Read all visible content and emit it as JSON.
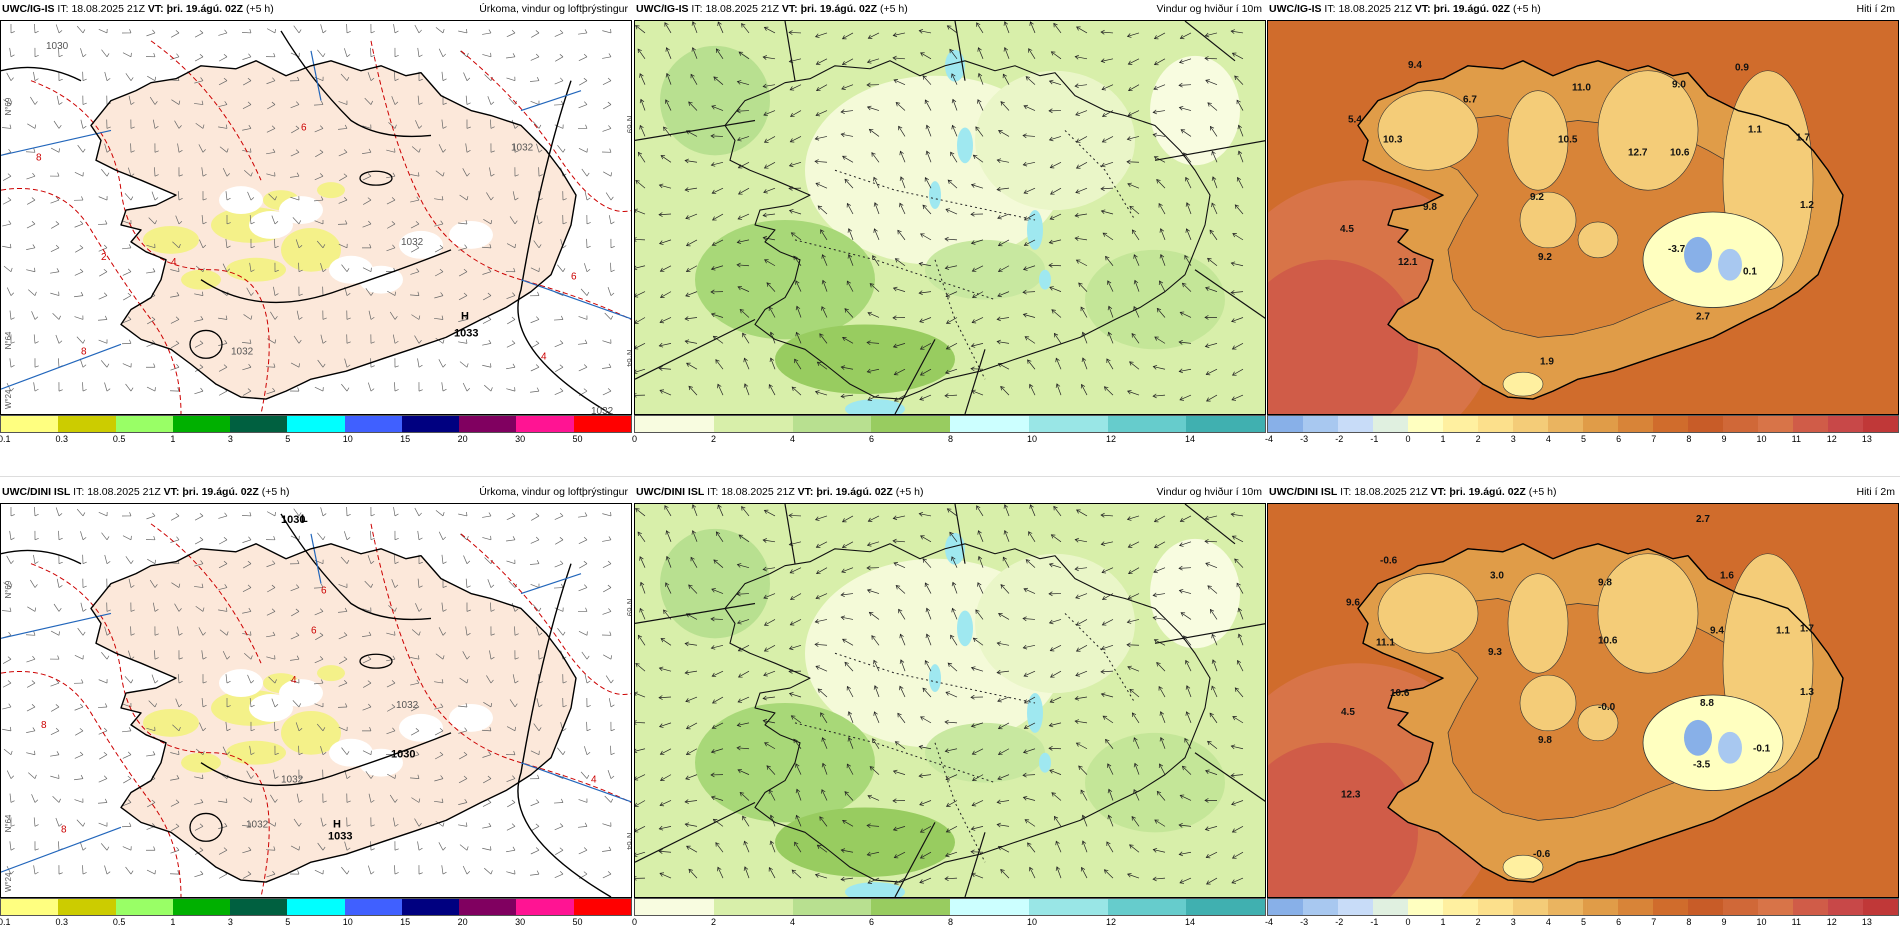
{
  "rows": [
    {
      "panels": [
        {
          "model": "UWC/IG-IS",
          "it_label": "IT:",
          "it_value": "18.08.2025 21Z",
          "vt_label": "VT:",
          "vt_value": "þri. 19.ágú. 02Z",
          "lead": "(+5 h)",
          "field": "Úrkoma, vindur og loftþrýstingur",
          "kind": "precip",
          "labels": [
            {
              "t": "1030",
              "c": "#555"
            },
            {
              "t": "1032",
              "c": "#555"
            },
            {
              "t": "1032",
              "c": "#555"
            },
            {
              "t": "1032",
              "c": "#555"
            },
            {
              "t": "1032",
              "c": "#555"
            },
            {
              "t": "H",
              "c": "#000",
              "b": true
            },
            {
              "t": "1033",
              "c": "#000",
              "b": true
            },
            {
              "t": "8",
              "c": "#c00"
            },
            {
              "t": "6",
              "c": "#c00"
            },
            {
              "t": "4",
              "c": "#c00"
            },
            {
              "t": "8",
              "c": "#c00"
            },
            {
              "t": "6",
              "c": "#c00"
            },
            {
              "t": "4",
              "c": "#c00"
            },
            {
              "t": "2",
              "c": "#c00"
            }
          ],
          "side_labels": [
            "N°69",
            "N°69",
            "N°64",
            "N°64",
            "W°24"
          ]
        },
        {
          "model": "UWC/IG-IS",
          "it_label": "IT:",
          "it_value": "18.08.2025 21Z",
          "vt_label": "VT:",
          "vt_value": "þri. 19.ágú. 02Z",
          "lead": "(+5 h)",
          "field": "Vindur og hviður í 10m",
          "kind": "wind",
          "labels": [],
          "side_labels": []
        },
        {
          "model": "UWC/IG-IS",
          "it_label": "IT:",
          "it_value": "18.08.2025 21Z",
          "vt_label": "VT:",
          "vt_value": "þri. 19.ágú. 02Z",
          "lead": "(+5 h)",
          "field": "Hiti í 2m",
          "kind": "temp",
          "labels": [
            {
              "t": "9.4"
            },
            {
              "t": "6.7"
            },
            {
              "t": "11.0"
            },
            {
              "t": "9.0"
            },
            {
              "t": "0.9"
            },
            {
              "t": "5.4"
            },
            {
              "t": "10.3"
            },
            {
              "t": "10.5"
            },
            {
              "t": "12.7"
            },
            {
              "t": "10.6"
            },
            {
              "t": "1.1"
            },
            {
              "t": "1.7"
            },
            {
              "t": "9.8"
            },
            {
              "t": "9.2"
            },
            {
              "t": "1.2"
            },
            {
              "t": "4.5"
            },
            {
              "t": "-3.7"
            },
            {
              "t": "12.1"
            },
            {
              "t": "9.2"
            },
            {
              "t": "0.1"
            },
            {
              "t": "2.7"
            },
            {
              "t": "1.9"
            }
          ],
          "side_labels": []
        }
      ]
    },
    {
      "panels": [
        {
          "model": "UWC/DINI ISL",
          "it_label": "IT:",
          "it_value": "18.08.2025 21Z",
          "vt_label": "VT:",
          "vt_value": "þri. 19.ágú. 02Z",
          "lead": "(+5 h)",
          "field": "Úrkoma, vindur og loftþrýstingur",
          "kind": "precip",
          "labels": [
            {
              "t": "L",
              "c": "#000",
              "b": true
            },
            {
              "t": "1030",
              "c": "#000",
              "b": true
            },
            {
              "t": "1032",
              "c": "#555"
            },
            {
              "t": "1032",
              "c": "#555"
            },
            {
              "t": "1032",
              "c": "#555"
            },
            {
              "t": "1030",
              "c": "#000",
              "b": true
            },
            {
              "t": "H",
              "c": "#000",
              "b": true
            },
            {
              "t": "1033",
              "c": "#000",
              "b": true
            },
            {
              "t": "6",
              "c": "#c00"
            },
            {
              "t": "4",
              "c": "#c00"
            },
            {
              "t": "8",
              "c": "#c00"
            },
            {
              "t": "8",
              "c": "#c00"
            },
            {
              "t": "6",
              "c": "#c00"
            },
            {
              "t": "4",
              "c": "#c00"
            }
          ],
          "side_labels": [
            "N°69",
            "N°69",
            "N°64",
            "N°64",
            "W°24"
          ]
        },
        {
          "model": "UWC/DINI ISL",
          "it_label": "IT:",
          "it_value": "18.08.2025 21Z",
          "vt_label": "VT:",
          "vt_value": "þri. 19.ágú. 02Z",
          "lead": "(+5 h)",
          "field": "Vindur og hviður í 10m",
          "kind": "wind",
          "labels": [],
          "side_labels": []
        },
        {
          "model": "UWC/DINI ISL",
          "it_label": "IT:",
          "it_value": "18.08.2025 21Z",
          "vt_label": "VT:",
          "vt_value": "þri. 19.ágú. 02Z",
          "lead": "(+5 h)",
          "field": "Hiti í 2m",
          "kind": "temp",
          "labels": [
            {
              "t": "2.7"
            },
            {
              "t": "-0.6"
            },
            {
              "t": "3.0"
            },
            {
              "t": "9.8"
            },
            {
              "t": "1.6"
            },
            {
              "t": "9.6"
            },
            {
              "t": "11.1"
            },
            {
              "t": "9.3"
            },
            {
              "t": "10.6"
            },
            {
              "t": "9.4"
            },
            {
              "t": "1.1"
            },
            {
              "t": "1.7"
            },
            {
              "t": "10.6"
            },
            {
              "t": "-0.0"
            },
            {
              "t": "8.8"
            },
            {
              "t": "1.3"
            },
            {
              "t": "4.5"
            },
            {
              "t": "9.8"
            },
            {
              "t": "-3.5"
            },
            {
              "t": "-0.1"
            },
            {
              "t": "12.3"
            },
            {
              "t": "-0.6"
            }
          ],
          "side_labels": []
        }
      ]
    }
  ],
  "colorbars": {
    "precip": {
      "ticks": [
        "0.1",
        "0.3",
        "0.5",
        "1",
        "3",
        "5",
        "10",
        "15",
        "20",
        "30",
        "50"
      ],
      "colors": [
        "#ffff80",
        "#cccc00",
        "#99ff66",
        "#00b000",
        "#006040",
        "#00ffff",
        "#4060ff",
        "#000080",
        "#800060",
        "#ff1493",
        "#ff0000"
      ]
    },
    "wind": {
      "ticks": [
        "0",
        "2",
        "4",
        "6",
        "8",
        "10",
        "12",
        "14"
      ],
      "colors": [
        "#f8fce0",
        "#d8efaa",
        "#b8e090",
        "#98cc60",
        "#ccffff",
        "#99e6e6",
        "#66cccc",
        "#40b0b0"
      ]
    },
    "temp": {
      "ticks": [
        "-4",
        "-3",
        "-2",
        "-1",
        "0",
        "1",
        "2",
        "3",
        "4",
        "5",
        "6",
        "7",
        "8",
        "9",
        "10",
        "11",
        "12",
        "13"
      ],
      "colors": [
        "#88b0e8",
        "#a8c8f0",
        "#c8dcf8",
        "#e0f0e0",
        "#ffffc0",
        "#fff0a0",
        "#fce08c",
        "#f4cc78",
        "#eab460",
        "#e09c48",
        "#d88438",
        "#d06c2c",
        "#c85c28",
        "#d06838",
        "#d87448",
        "#d05c48",
        "#c84848",
        "#c03838"
      ]
    }
  }
}
